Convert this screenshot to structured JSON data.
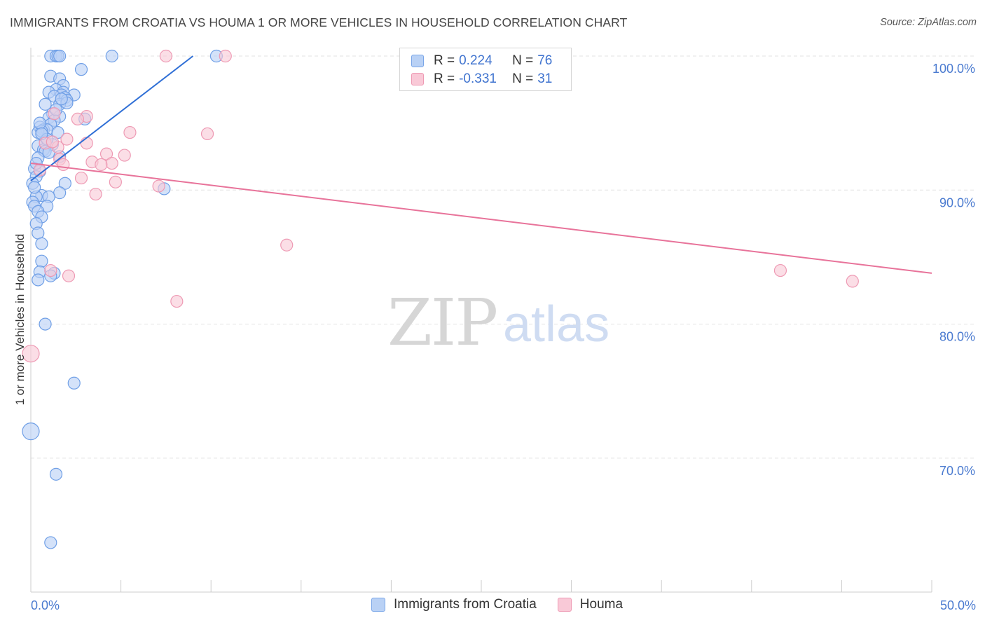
{
  "header": {
    "title": "IMMIGRANTS FROM CROATIA VS HOUMA 1 OR MORE VEHICLES IN HOUSEHOLD CORRELATION CHART",
    "source": "Source: ZipAtlas.com"
  },
  "watermark": {
    "zip": "ZIP",
    "atlas": "atlas"
  },
  "legend": {
    "rows": [
      {
        "r_label": "R = ",
        "r_value": "0.224",
        "n_label": "N = ",
        "n_value": "76"
      },
      {
        "r_label": "R = ",
        "r_value": "-0.331",
        "n_label": "N = ",
        "n_value": "31"
      }
    ],
    "bottom": [
      "Immigrants from Croatia",
      "Houma"
    ]
  },
  "colors": {
    "blue_fill": "#b9d1f5",
    "blue_stroke": "#6f9fe6",
    "blue_line": "#2f6fd6",
    "pink_fill": "#f9c9d7",
    "pink_stroke": "#ee9ab4",
    "pink_line": "#e8739a",
    "grid": "#e3e3e3",
    "axis": "#cccccc"
  },
  "chart_data": {
    "type": "scatter",
    "title": "IMMIGRANTS FROM CROATIA VS HOUMA 1 OR MORE VEHICLES IN HOUSEHOLD CORRELATION CHART",
    "xlabel": "",
    "ylabel": "1 or more Vehicles in Household",
    "xlim": [
      0,
      50
    ],
    "ylim": [
      60.0,
      101.0
    ],
    "x_tick_labels": [
      {
        "value": 0,
        "label": "0.0%"
      },
      {
        "value": 50,
        "label": "50.0%"
      }
    ],
    "x_minor_ticks": [
      5,
      10,
      15,
      20,
      25,
      30,
      35,
      40,
      45,
      50
    ],
    "y_tick_labels": [
      {
        "value": 100,
        "label": "100.0%"
      },
      {
        "value": 90,
        "label": "90.0%"
      },
      {
        "value": 80,
        "label": "80.0%"
      },
      {
        "value": 70,
        "label": "70.0%"
      }
    ],
    "grid": true,
    "legend_position": "top-center",
    "series": [
      {
        "name": "Immigrants from Croatia",
        "R": 0.224,
        "N": 76,
        "trend": {
          "x": [
            0.0,
            9.0
          ],
          "y": [
            90.7,
            100.0
          ]
        },
        "points": [
          {
            "x": 1.1,
            "y": 100.0
          },
          {
            "x": 1.4,
            "y": 100.0
          },
          {
            "x": 1.5,
            "y": 100.0
          },
          {
            "x": 1.6,
            "y": 100.0
          },
          {
            "x": 4.5,
            "y": 100.0
          },
          {
            "x": 10.3,
            "y": 100.0
          },
          {
            "x": 2.8,
            "y": 99.0
          },
          {
            "x": 1.1,
            "y": 98.5
          },
          {
            "x": 1.6,
            "y": 98.3
          },
          {
            "x": 1.8,
            "y": 97.8
          },
          {
            "x": 1.4,
            "y": 97.5
          },
          {
            "x": 1.0,
            "y": 97.3
          },
          {
            "x": 1.8,
            "y": 97.3
          },
          {
            "x": 1.7,
            "y": 97.1
          },
          {
            "x": 2.4,
            "y": 97.1
          },
          {
            "x": 1.3,
            "y": 97.0
          },
          {
            "x": 1.9,
            "y": 96.9
          },
          {
            "x": 2.0,
            "y": 96.7
          },
          {
            "x": 0.8,
            "y": 96.4
          },
          {
            "x": 1.6,
            "y": 96.4
          },
          {
            "x": 2.0,
            "y": 96.5
          },
          {
            "x": 1.2,
            "y": 95.7
          },
          {
            "x": 1.0,
            "y": 95.4
          },
          {
            "x": 1.6,
            "y": 95.5
          },
          {
            "x": 3.0,
            "y": 95.3
          },
          {
            "x": 1.3,
            "y": 95.2
          },
          {
            "x": 1.1,
            "y": 94.9
          },
          {
            "x": 0.5,
            "y": 94.7
          },
          {
            "x": 0.7,
            "y": 94.5
          },
          {
            "x": 0.9,
            "y": 94.5
          },
          {
            "x": 0.4,
            "y": 94.3
          },
          {
            "x": 1.5,
            "y": 94.3
          },
          {
            "x": 0.6,
            "y": 94.4
          },
          {
            "x": 0.8,
            "y": 93.6
          },
          {
            "x": 1.2,
            "y": 93.4
          },
          {
            "x": 0.4,
            "y": 93.3
          },
          {
            "x": 0.7,
            "y": 93.0
          },
          {
            "x": 0.8,
            "y": 92.9
          },
          {
            "x": 1.6,
            "y": 92.5
          },
          {
            "x": 0.4,
            "y": 92.4
          },
          {
            "x": 0.2,
            "y": 91.6
          },
          {
            "x": 0.5,
            "y": 91.4
          },
          {
            "x": 0.3,
            "y": 91.0
          },
          {
            "x": 0.1,
            "y": 90.5
          },
          {
            "x": 1.9,
            "y": 90.5
          },
          {
            "x": 7.4,
            "y": 90.1
          },
          {
            "x": 1.6,
            "y": 89.8
          },
          {
            "x": 0.6,
            "y": 89.6
          },
          {
            "x": 1.0,
            "y": 89.5
          },
          {
            "x": 0.3,
            "y": 89.5
          },
          {
            "x": 0.1,
            "y": 89.1
          },
          {
            "x": 0.2,
            "y": 88.8
          },
          {
            "x": 0.9,
            "y": 88.8
          },
          {
            "x": 0.4,
            "y": 88.4
          },
          {
            "x": 0.6,
            "y": 88.0
          },
          {
            "x": 0.3,
            "y": 87.5
          },
          {
            "x": 0.4,
            "y": 86.8
          },
          {
            "x": 0.6,
            "y": 86.0
          },
          {
            "x": 0.6,
            "y": 84.7
          },
          {
            "x": 0.5,
            "y": 83.9
          },
          {
            "x": 1.3,
            "y": 83.8
          },
          {
            "x": 1.1,
            "y": 83.6
          },
          {
            "x": 0.4,
            "y": 83.3
          },
          {
            "x": 0.8,
            "y": 80.0
          },
          {
            "x": 2.4,
            "y": 75.6
          },
          {
            "x": 0.0,
            "y": 72.0
          },
          {
            "x": 1.4,
            "y": 68.8
          },
          {
            "x": 1.1,
            "y": 63.7
          },
          {
            "x": 0.9,
            "y": 93.8
          },
          {
            "x": 1.4,
            "y": 96.0
          },
          {
            "x": 0.2,
            "y": 90.2
          },
          {
            "x": 0.5,
            "y": 95.0
          },
          {
            "x": 1.7,
            "y": 96.8
          },
          {
            "x": 0.3,
            "y": 92.0
          },
          {
            "x": 1.0,
            "y": 92.8
          },
          {
            "x": 0.6,
            "y": 94.2
          }
        ]
      },
      {
        "name": "Houma",
        "R": -0.331,
        "N": 31,
        "trend": {
          "x": [
            0.0,
            50.0
          ],
          "y": [
            92.0,
            83.8
          ]
        },
        "points": [
          {
            "x": 7.5,
            "y": 100.0
          },
          {
            "x": 10.8,
            "y": 100.0
          },
          {
            "x": 1.3,
            "y": 95.7
          },
          {
            "x": 3.1,
            "y": 95.5
          },
          {
            "x": 2.6,
            "y": 95.3
          },
          {
            "x": 5.5,
            "y": 94.3
          },
          {
            "x": 9.8,
            "y": 94.2
          },
          {
            "x": 2.0,
            "y": 93.8
          },
          {
            "x": 3.1,
            "y": 93.5
          },
          {
            "x": 0.8,
            "y": 93.5
          },
          {
            "x": 1.5,
            "y": 93.2
          },
          {
            "x": 1.2,
            "y": 93.6
          },
          {
            "x": 4.2,
            "y": 92.7
          },
          {
            "x": 5.2,
            "y": 92.6
          },
          {
            "x": 1.6,
            "y": 92.3
          },
          {
            "x": 3.4,
            "y": 92.1
          },
          {
            "x": 4.5,
            "y": 92.0
          },
          {
            "x": 3.9,
            "y": 91.9
          },
          {
            "x": 1.8,
            "y": 91.9
          },
          {
            "x": 2.8,
            "y": 90.9
          },
          {
            "x": 4.7,
            "y": 90.6
          },
          {
            "x": 7.1,
            "y": 90.3
          },
          {
            "x": 3.6,
            "y": 89.7
          },
          {
            "x": 14.2,
            "y": 85.9
          },
          {
            "x": 1.1,
            "y": 84.0
          },
          {
            "x": 2.1,
            "y": 83.6
          },
          {
            "x": 41.6,
            "y": 84.0
          },
          {
            "x": 45.6,
            "y": 83.2
          },
          {
            "x": 8.1,
            "y": 81.7
          },
          {
            "x": 0.0,
            "y": 77.8
          },
          {
            "x": 0.5,
            "y": 91.5
          }
        ]
      }
    ]
  }
}
